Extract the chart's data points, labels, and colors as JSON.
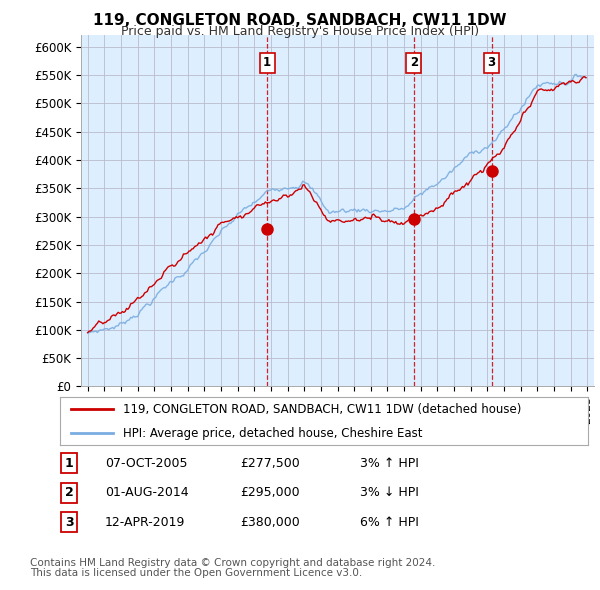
{
  "title": "119, CONGLETON ROAD, SANDBACH, CW11 1DW",
  "subtitle": "Price paid vs. HM Land Registry's House Price Index (HPI)",
  "ylabel_ticks": [
    "£0",
    "£50K",
    "£100K",
    "£150K",
    "£200K",
    "£250K",
    "£300K",
    "£350K",
    "£400K",
    "£450K",
    "£500K",
    "£550K",
    "£600K"
  ],
  "ytick_vals": [
    0,
    50000,
    100000,
    150000,
    200000,
    250000,
    300000,
    350000,
    400000,
    450000,
    500000,
    550000,
    600000
  ],
  "ylim": [
    0,
    620000
  ],
  "xlim_start": 1994.6,
  "xlim_end": 2025.4,
  "chart_bg_color": "#ddeeff",
  "sale_markers": [
    {
      "label": "1",
      "year": 2005.78,
      "price": 277500,
      "date": "07-OCT-2005",
      "pct": "3%",
      "dir": "↑"
    },
    {
      "label": "2",
      "year": 2014.58,
      "price": 295000,
      "date": "01-AUG-2014",
      "pct": "3%",
      "dir": "↓"
    },
    {
      "label": "3",
      "year": 2019.25,
      "price": 380000,
      "date": "12-APR-2019",
      "pct": "6%",
      "dir": "↑"
    }
  ],
  "legend_line1": "119, CONGLETON ROAD, SANDBACH, CW11 1DW (detached house)",
  "legend_line2": "HPI: Average price, detached house, Cheshire East",
  "footer1": "Contains HM Land Registry data © Crown copyright and database right 2024.",
  "footer2": "This data is licensed under the Open Government Licence v3.0.",
  "line_color_property": "#cc0000",
  "line_color_hpi": "#7aade0",
  "marker_box_color": "#cc0000",
  "bg_color": "#ffffff",
  "grid_color": "#bbbbcc"
}
